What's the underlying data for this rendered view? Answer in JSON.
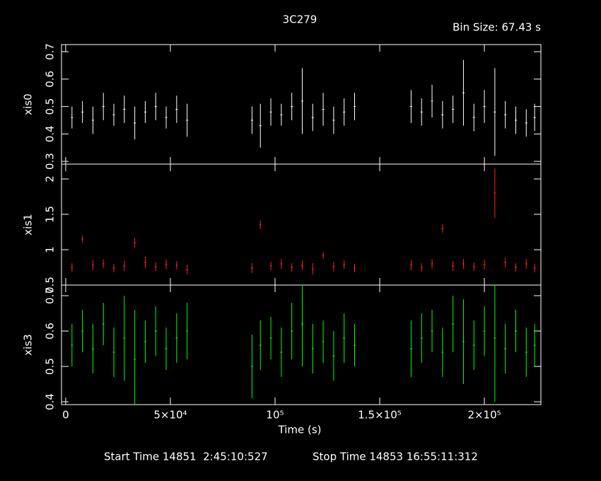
{
  "chart_data": {
    "type": "errorbar",
    "title": "3C279",
    "subtitle": "Bin Size: 67.43 s",
    "x_label": "Time (s)",
    "start_time": "Start Time 14851  2:45:10:527",
    "stop_time": "Stop Time 14853 16:55:11:312",
    "x": [
      3000,
      8000,
      13000,
      18000,
      23000,
      28000,
      33000,
      38000,
      43000,
      48000,
      53000,
      58000,
      89000,
      93000,
      98000,
      103000,
      108000,
      113000,
      118000,
      123000,
      128000,
      133000,
      138000,
      165000,
      170000,
      175000,
      180000,
      185000,
      190000,
      195000,
      200000,
      205000,
      210000,
      215000,
      220000,
      224000
    ],
    "xlim": [
      -2000,
      227000
    ],
    "xticks": [
      0,
      {
        "value": 50000,
        "label": "5×10⁴"
      },
      {
        "value": 100000,
        "label": "10⁵"
      },
      {
        "value": 150000,
        "label": "1.5×10⁵"
      },
      {
        "value": 200000,
        "label": "2×10⁵"
      }
    ],
    "panels": [
      {
        "y_label": "xis0",
        "color": "#ffffff",
        "ylim": [
          0.29,
          0.726
        ],
        "yticks": [
          0.3,
          0.4,
          0.5,
          0.6,
          0.7
        ],
        "values": [
          0.46,
          0.48,
          0.45,
          0.5,
          0.47,
          0.49,
          0.44,
          0.48,
          0.5,
          0.46,
          0.49,
          0.45,
          0.45,
          0.43,
          0.48,
          0.47,
          0.5,
          0.52,
          0.46,
          0.49,
          0.45,
          0.48,
          0.5,
          0.5,
          0.48,
          0.52,
          0.47,
          0.49,
          0.55,
          0.46,
          0.5,
          0.48,
          0.47,
          0.45,
          0.44,
          0.46
        ],
        "errors": [
          0.04,
          0.04,
          0.05,
          0.05,
          0.04,
          0.05,
          0.06,
          0.04,
          0.05,
          0.04,
          0.05,
          0.06,
          0.05,
          0.08,
          0.05,
          0.04,
          0.05,
          0.12,
          0.05,
          0.06,
          0.05,
          0.05,
          0.05,
          0.06,
          0.05,
          0.06,
          0.05,
          0.05,
          0.12,
          0.05,
          0.06,
          0.16,
          0.05,
          0.05,
          0.05,
          0.05
        ]
      },
      {
        "y_label": "xis1",
        "color": "#ff2020",
        "ylim": [
          0.5,
          2.21
        ],
        "yticks": [
          0.5,
          1,
          1.5,
          2
        ],
        "values": [
          0.75,
          1.15,
          0.78,
          0.8,
          0.74,
          0.77,
          1.1,
          0.82,
          0.76,
          0.79,
          0.78,
          0.72,
          0.74,
          1.35,
          0.77,
          0.8,
          0.75,
          0.78,
          0.73,
          0.92,
          0.76,
          0.79,
          0.74,
          0.78,
          0.75,
          0.8,
          1.3,
          0.77,
          0.8,
          0.76,
          0.79,
          1.8,
          0.82,
          0.75,
          0.8,
          0.74
        ],
        "errors": [
          0.06,
          0.05,
          0.07,
          0.06,
          0.06,
          0.07,
          0.07,
          0.08,
          0.06,
          0.07,
          0.06,
          0.07,
          0.07,
          0.06,
          0.06,
          0.07,
          0.06,
          0.07,
          0.08,
          0.05,
          0.07,
          0.06,
          0.06,
          0.07,
          0.06,
          0.07,
          0.06,
          0.07,
          0.07,
          0.06,
          0.07,
          0.35,
          0.07,
          0.06,
          0.07,
          0.06
        ]
      },
      {
        "y_label": "xis3",
        "color": "#00ff00",
        "ylim": [
          0.392,
          0.73
        ],
        "yticks": [
          0.4,
          0.5,
          0.6,
          0.7
        ],
        "values": [
          0.56,
          0.6,
          0.55,
          0.62,
          0.54,
          0.58,
          0.52,
          0.57,
          0.6,
          0.55,
          0.58,
          0.6,
          0.5,
          0.56,
          0.58,
          0.54,
          0.6,
          0.62,
          0.55,
          0.57,
          0.53,
          0.58,
          0.56,
          0.55,
          0.58,
          0.6,
          0.54,
          0.62,
          0.57,
          0.56,
          0.6,
          0.58,
          0.55,
          0.6,
          0.54,
          0.56
        ],
        "errors": [
          0.06,
          0.06,
          0.07,
          0.06,
          0.07,
          0.12,
          0.14,
          0.06,
          0.07,
          0.06,
          0.07,
          0.08,
          0.09,
          0.07,
          0.06,
          0.07,
          0.08,
          0.12,
          0.07,
          0.06,
          0.07,
          0.07,
          0.06,
          0.08,
          0.07,
          0.06,
          0.07,
          0.08,
          0.12,
          0.07,
          0.07,
          0.18,
          0.07,
          0.06,
          0.07,
          0.06
        ]
      }
    ]
  }
}
